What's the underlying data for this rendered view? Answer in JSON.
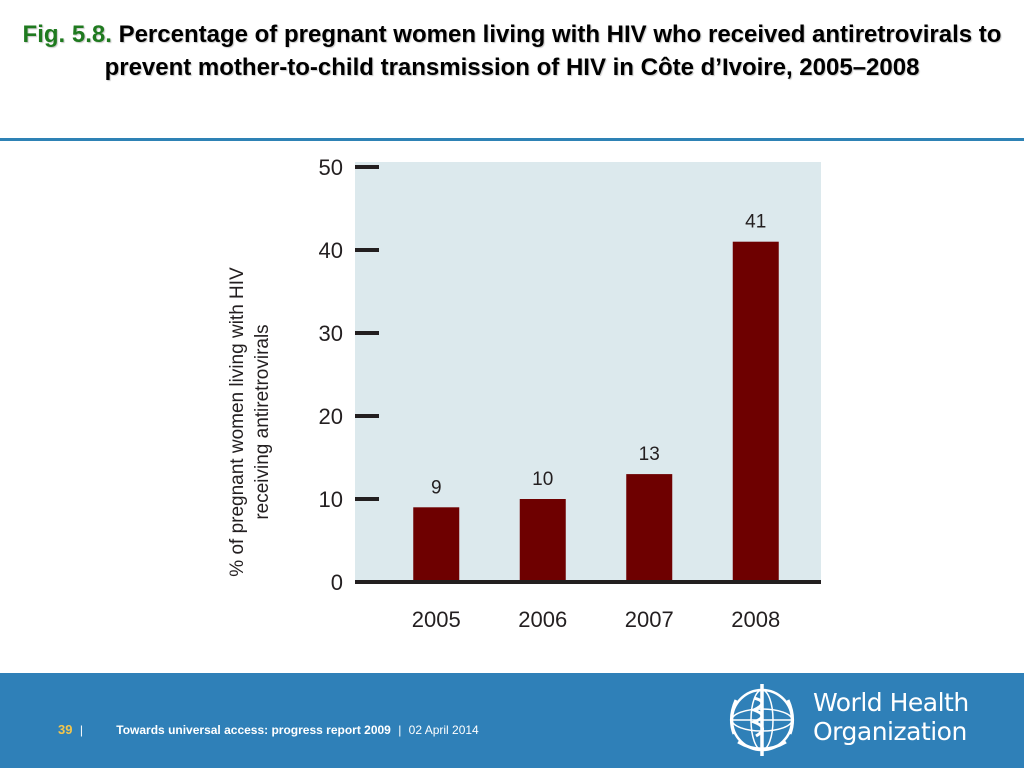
{
  "slide": {
    "fig_label": "Fig. 5.8.",
    "title": "Percentage of pregnant women living with HIV who received antiretrovirals to prevent mother-to-child transmission of HIV in Côte d’Ivoire, 2005–2008"
  },
  "footer": {
    "page_number": "39",
    "separator": "|",
    "report": "Towards universal access: progress report 2009",
    "date": "02 April 2014",
    "org_line1": "World Health",
    "org_line2": "Organization",
    "logo_icon": "who-emblem-icon"
  },
  "colors": {
    "bar": "#6e0000",
    "plot_bg": "#dce9ed",
    "footer_bg": "#2f80b8",
    "fig_label": "#1f7a1f",
    "axis": "#231f20"
  },
  "chart_data": {
    "type": "bar",
    "categories": [
      "2005",
      "2006",
      "2007",
      "2008"
    ],
    "values": [
      9,
      10,
      13,
      41
    ],
    "data_labels": [
      "9",
      "10",
      "13",
      "41"
    ],
    "ylabel_line1": "% of pregnant women living with HIV",
    "ylabel_line2": "receiving antiretrovirals",
    "xlabel": "",
    "ylim": [
      0,
      50
    ],
    "yticks": [
      "0",
      "10",
      "20",
      "30",
      "40",
      "50"
    ],
    "grid": false,
    "legend": "none"
  }
}
